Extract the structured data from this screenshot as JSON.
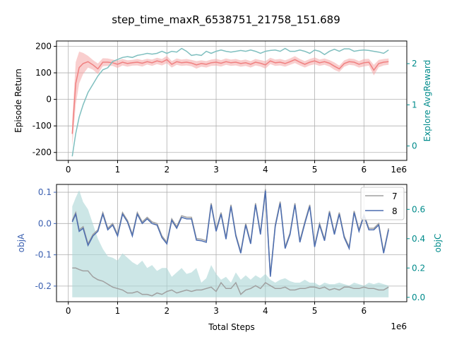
{
  "figure_title": "step_time_maxR_6538751_21758_151.689",
  "colors": {
    "return_line": "#f08080",
    "return_band": "#f4a6a6",
    "explore_line": "#7fbfbf",
    "teal_axis": "#008b8b",
    "objA_line": "#4c6db0",
    "objA_axis": "#3a5fb0",
    "gray_line": "#a0a0a0",
    "objC_fill": "#aad6d6",
    "grid": "#b0b0b0"
  },
  "chart_data": [
    {
      "type": "line",
      "panel": "top",
      "ylabel": "Episode Return",
      "y2label": "Explore AvgReward",
      "x_exponent_label": "1e6",
      "xlim": [
        -0.24,
        6.87
      ],
      "ylim": [
        -230,
        220
      ],
      "y2lim": [
        -0.35,
        2.55
      ],
      "xticks": [
        0,
        1,
        2,
        3,
        4,
        5,
        6
      ],
      "yticks": [
        -200,
        -100,
        0,
        100,
        200
      ],
      "y2ticks": [
        0,
        1,
        2
      ],
      "grid": true,
      "series": [
        {
          "axis": "left",
          "style": "line_with_band",
          "x": [
            0.08,
            0.15,
            0.22,
            0.3,
            0.4,
            0.5,
            0.6,
            0.7,
            0.8,
            0.9,
            1.0,
            1.1,
            1.2,
            1.3,
            1.4,
            1.5,
            1.6,
            1.7,
            1.8,
            1.9,
            2.0,
            2.1,
            2.2,
            2.3,
            2.4,
            2.5,
            2.6,
            2.7,
            2.8,
            2.9,
            3.0,
            3.1,
            3.2,
            3.3,
            3.4,
            3.5,
            3.6,
            3.7,
            3.8,
            3.9,
            4.0,
            4.1,
            4.2,
            4.3,
            4.4,
            4.5,
            4.6,
            4.7,
            4.8,
            4.9,
            5.0,
            5.1,
            5.2,
            5.3,
            5.4,
            5.5,
            5.6,
            5.7,
            5.8,
            5.9,
            6.0,
            6.1,
            6.2,
            6.3,
            6.4,
            6.5
          ],
          "y": [
            -130,
            60,
            120,
            135,
            142,
            130,
            115,
            140,
            140,
            138,
            132,
            140,
            135,
            138,
            140,
            136,
            142,
            138,
            145,
            140,
            150,
            132,
            142,
            138,
            140,
            137,
            130,
            135,
            132,
            138,
            140,
            136,
            142,
            138,
            140,
            135,
            138,
            132,
            140,
            136,
            130,
            145,
            138,
            140,
            135,
            142,
            150,
            140,
            132,
            140,
            145,
            138,
            142,
            136,
            125,
            115,
            135,
            142,
            140,
            132,
            138,
            140,
            110,
            135,
            140,
            142
          ],
          "band_half_width": [
            50,
            80,
            60,
            40,
            22,
            18,
            20,
            15,
            14,
            12,
            14,
            12,
            12,
            11,
            12,
            12,
            11,
            12,
            12,
            12,
            14,
            12,
            12,
            12,
            12,
            12,
            14,
            12,
            12,
            12,
            13,
            12,
            12,
            12,
            12,
            12,
            12,
            12,
            12,
            12,
            14,
            12,
            12,
            12,
            12,
            12,
            13,
            12,
            12,
            12,
            13,
            12,
            12,
            12,
            14,
            12,
            12,
            12,
            12,
            12,
            14,
            13,
            20,
            14,
            12,
            12
          ]
        },
        {
          "axis": "right",
          "style": "line",
          "x": [
            0.08,
            0.15,
            0.22,
            0.3,
            0.4,
            0.5,
            0.6,
            0.7,
            0.8,
            0.9,
            1.0,
            1.1,
            1.2,
            1.3,
            1.4,
            1.5,
            1.6,
            1.7,
            1.8,
            1.9,
            2.0,
            2.1,
            2.2,
            2.3,
            2.4,
            2.5,
            2.6,
            2.7,
            2.8,
            2.9,
            3.0,
            3.1,
            3.2,
            3.3,
            3.4,
            3.5,
            3.6,
            3.7,
            3.8,
            3.9,
            4.0,
            4.1,
            4.2,
            4.3,
            4.4,
            4.5,
            4.6,
            4.7,
            4.8,
            4.9,
            5.0,
            5.1,
            5.2,
            5.3,
            5.4,
            5.5,
            5.6,
            5.7,
            5.8,
            5.9,
            6.0,
            6.1,
            6.2,
            6.3,
            6.4,
            6.5
          ],
          "y": [
            -0.25,
            0.3,
            0.7,
            1.0,
            1.3,
            1.5,
            1.7,
            1.85,
            1.9,
            2.05,
            2.1,
            2.15,
            2.17,
            2.15,
            2.2,
            2.22,
            2.25,
            2.23,
            2.25,
            2.3,
            2.25,
            2.3,
            2.28,
            2.37,
            2.3,
            2.2,
            2.22,
            2.2,
            2.3,
            2.25,
            2.3,
            2.33,
            2.3,
            2.28,
            2.3,
            2.32,
            2.3,
            2.33,
            2.3,
            2.25,
            2.3,
            2.32,
            2.33,
            2.3,
            2.37,
            2.3,
            2.3,
            2.33,
            2.3,
            2.25,
            2.33,
            2.3,
            2.22,
            2.3,
            2.35,
            2.3,
            2.36,
            2.36,
            2.3,
            2.32,
            2.33,
            2.32,
            2.3,
            2.28,
            2.25,
            2.33
          ]
        }
      ]
    },
    {
      "type": "line",
      "panel": "bottom",
      "xlabel": "Total Steps",
      "ylabel": "objA",
      "y2label": "objC",
      "x_exponent_label": "1e6",
      "xlim": [
        -0.24,
        6.87
      ],
      "ylim": [
        -0.25,
        0.125
      ],
      "y2lim": [
        -0.03,
        0.77
      ],
      "xticks": [
        0,
        1,
        2,
        3,
        4,
        5,
        6
      ],
      "yticks": [
        -0.2,
        -0.1,
        0.0,
        0.1
      ],
      "y2ticks": [
        0.0,
        0.2,
        0.4,
        0.6
      ],
      "grid": true,
      "legend": {
        "position": "top-right",
        "entries": [
          "7",
          "8"
        ]
      },
      "series": [
        {
          "name": "7",
          "axis": "left",
          "x": [
            0.08,
            0.15,
            0.22,
            0.3,
            0.4,
            0.5,
            0.6,
            0.7,
            0.8,
            0.9,
            1.0,
            1.1,
            1.2,
            1.3,
            1.4,
            1.5,
            1.6,
            1.7,
            1.8,
            1.9,
            2.0,
            2.1,
            2.2,
            2.3,
            2.4,
            2.5,
            2.6,
            2.7,
            2.8,
            2.9,
            3.0,
            3.1,
            3.2,
            3.3,
            3.4,
            3.5,
            3.6,
            3.7,
            3.8,
            3.9,
            4.0,
            4.1,
            4.2,
            4.3,
            4.4,
            4.5,
            4.6,
            4.7,
            4.8,
            4.9,
            5.0,
            5.1,
            5.2,
            5.3,
            5.4,
            5.5,
            5.6,
            5.7,
            5.8,
            5.9,
            6.0,
            6.1,
            6.2,
            6.3,
            6.4,
            6.5
          ],
          "y": [
            0.01,
            0.035,
            -0.02,
            -0.01,
            -0.065,
            -0.035,
            -0.02,
            0.035,
            -0.015,
            0.0,
            -0.035,
            0.035,
            0.01,
            -0.035,
            0.035,
            0.005,
            0.02,
            0.005,
            0.0,
            -0.04,
            -0.06,
            0.015,
            -0.01,
            0.025,
            0.02,
            0.02,
            -0.048,
            -0.05,
            -0.055,
            0.065,
            -0.02,
            0.035,
            -0.045,
            0.06,
            -0.035,
            -0.09,
            0.0,
            -0.06,
            0.065,
            -0.03,
            0.11,
            -0.165,
            -0.005,
            0.07,
            -0.075,
            -0.03,
            0.065,
            -0.055,
            0.005,
            0.06,
            -0.07,
            0.0,
            -0.05,
            0.04,
            -0.03,
            0.035,
            -0.04,
            -0.075,
            0.04,
            -0.02,
            0.03,
            -0.015,
            -0.015,
            0.0,
            -0.09,
            -0.015
          ]
        },
        {
          "name": "8",
          "axis": "left",
          "x": [
            0.08,
            0.15,
            0.22,
            0.3,
            0.4,
            0.5,
            0.6,
            0.7,
            0.8,
            0.9,
            1.0,
            1.1,
            1.2,
            1.3,
            1.4,
            1.5,
            1.6,
            1.7,
            1.8,
            1.9,
            2.0,
            2.1,
            2.2,
            2.3,
            2.4,
            2.5,
            2.6,
            2.7,
            2.8,
            2.9,
            3.0,
            3.1,
            3.2,
            3.3,
            3.4,
            3.5,
            3.6,
            3.7,
            3.8,
            3.9,
            4.0,
            4.1,
            4.2,
            4.3,
            4.4,
            4.5,
            4.6,
            4.7,
            4.8,
            4.9,
            5.0,
            5.1,
            5.2,
            5.3,
            5.4,
            5.5,
            5.6,
            5.7,
            5.8,
            5.9,
            6.0,
            6.1,
            6.2,
            6.3,
            6.4,
            6.5
          ],
          "y": [
            0.005,
            0.03,
            -0.025,
            -0.015,
            -0.07,
            -0.04,
            -0.025,
            0.03,
            -0.02,
            -0.005,
            -0.04,
            0.03,
            0.005,
            -0.04,
            0.03,
            0.0,
            0.015,
            0.0,
            -0.005,
            -0.045,
            -0.065,
            0.01,
            -0.015,
            0.02,
            0.015,
            0.015,
            -0.053,
            -0.055,
            -0.06,
            0.06,
            -0.025,
            0.03,
            -0.05,
            0.055,
            -0.04,
            -0.095,
            -0.005,
            -0.065,
            0.06,
            -0.035,
            0.105,
            -0.17,
            -0.01,
            0.065,
            -0.08,
            -0.035,
            0.06,
            -0.06,
            0.0,
            0.055,
            -0.075,
            -0.005,
            -0.055,
            0.035,
            -0.035,
            0.03,
            -0.045,
            -0.08,
            0.035,
            -0.025,
            0.025,
            -0.02,
            -0.02,
            -0.005,
            -0.095,
            -0.02
          ]
        },
        {
          "axis": "right",
          "style": "gray_line",
          "x": [
            0.08,
            0.15,
            0.22,
            0.3,
            0.4,
            0.5,
            0.6,
            0.7,
            0.8,
            0.9,
            1.0,
            1.1,
            1.2,
            1.3,
            1.4,
            1.5,
            1.6,
            1.7,
            1.8,
            1.9,
            2.0,
            2.1,
            2.2,
            2.3,
            2.4,
            2.5,
            2.6,
            2.7,
            2.8,
            2.9,
            3.0,
            3.1,
            3.2,
            3.3,
            3.4,
            3.5,
            3.6,
            3.7,
            3.8,
            3.9,
            4.0,
            4.1,
            4.2,
            4.3,
            4.4,
            4.5,
            4.6,
            4.7,
            4.8,
            4.9,
            5.0,
            5.1,
            5.2,
            5.3,
            5.4,
            5.5,
            5.6,
            5.7,
            5.8,
            5.9,
            6.0,
            6.1,
            6.2,
            6.3,
            6.4,
            6.5
          ],
          "y": [
            0.2,
            0.2,
            0.19,
            0.18,
            0.18,
            0.14,
            0.12,
            0.11,
            0.09,
            0.07,
            0.06,
            0.05,
            0.03,
            0.03,
            0.04,
            0.02,
            0.02,
            0.01,
            0.03,
            0.02,
            0.04,
            0.05,
            0.03,
            0.04,
            0.05,
            0.04,
            0.05,
            0.05,
            0.06,
            0.07,
            0.04,
            0.1,
            0.06,
            0.06,
            0.1,
            0.02,
            0.05,
            0.06,
            0.08,
            0.06,
            0.1,
            0.08,
            0.06,
            0.06,
            0.07,
            0.05,
            0.05,
            0.06,
            0.06,
            0.07,
            0.07,
            0.06,
            0.07,
            0.05,
            0.06,
            0.05,
            0.07,
            0.07,
            0.06,
            0.06,
            0.07,
            0.06,
            0.06,
            0.05,
            0.05,
            0.07
          ]
        },
        {
          "axis": "right",
          "style": "fill",
          "x": [
            0.08,
            0.15,
            0.22,
            0.3,
            0.4,
            0.5,
            0.6,
            0.7,
            0.8,
            0.9,
            1.0,
            1.1,
            1.2,
            1.3,
            1.4,
            1.5,
            1.6,
            1.7,
            1.8,
            1.9,
            2.0,
            2.1,
            2.2,
            2.3,
            2.4,
            2.5,
            2.6,
            2.7,
            2.8,
            2.9,
            3.0,
            3.1,
            3.2,
            3.3,
            3.4,
            3.5,
            3.6,
            3.7,
            3.8,
            3.9,
            4.0,
            4.1,
            4.2,
            4.3,
            4.4,
            4.5,
            4.6,
            4.7,
            4.8,
            4.9,
            5.0,
            5.1,
            5.2,
            5.3,
            5.4,
            5.5,
            5.6,
            5.7,
            5.8,
            5.9,
            6.0,
            6.1,
            6.2,
            6.3,
            6.4,
            6.5
          ],
          "y": [
            0.62,
            0.68,
            0.73,
            0.65,
            0.6,
            0.5,
            0.4,
            0.33,
            0.28,
            0.27,
            0.25,
            0.3,
            0.27,
            0.24,
            0.22,
            0.25,
            0.2,
            0.22,
            0.18,
            0.2,
            0.2,
            0.14,
            0.17,
            0.2,
            0.16,
            0.17,
            0.2,
            0.1,
            0.13,
            0.22,
            0.16,
            0.12,
            0.14,
            0.1,
            0.17,
            0.12,
            0.15,
            0.12,
            0.15,
            0.13,
            0.16,
            0.12,
            0.1,
            0.12,
            0.13,
            0.11,
            0.1,
            0.1,
            0.12,
            0.1,
            0.1,
            0.08,
            0.1,
            0.09,
            0.09,
            0.1,
            0.09,
            0.08,
            0.1,
            0.09,
            0.08,
            0.1,
            0.09,
            0.1,
            0.09,
            0.08
          ]
        }
      ]
    }
  ]
}
